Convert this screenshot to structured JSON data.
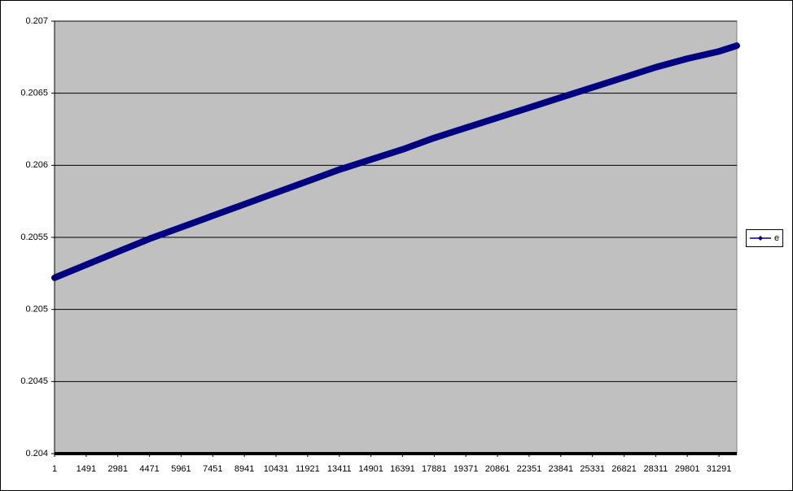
{
  "chart_data": {
    "type": "line",
    "x": [
      1,
      1491,
      2981,
      4471,
      5961,
      7451,
      8941,
      10431,
      11921,
      13411,
      14901,
      16391,
      17881,
      19371,
      20861,
      22351,
      23841,
      25331,
      26821,
      28311,
      29801,
      31291,
      32131
    ],
    "series": [
      {
        "name": "e",
        "color": "#000080",
        "values": [
          0.20522,
          0.20531,
          0.2054,
          0.20549,
          0.20557,
          0.20565,
          0.20573,
          0.20581,
          0.20589,
          0.20597,
          0.20604,
          0.20611,
          0.20619,
          0.20626,
          0.20633,
          0.2064,
          0.20647,
          0.20654,
          0.20661,
          0.20668,
          0.20674,
          0.20679,
          0.20683
        ]
      }
    ],
    "xlim": [
      1,
      32131
    ],
    "xticks": [
      1,
      1491,
      2981,
      4471,
      5961,
      7451,
      8941,
      10431,
      11921,
      13411,
      14901,
      16391,
      17881,
      19371,
      20861,
      22351,
      23841,
      25331,
      26821,
      28311,
      29801,
      31291
    ],
    "ylim": [
      0.204,
      0.207
    ],
    "yticks": [
      0.204,
      0.2045,
      0.205,
      0.2055,
      0.206,
      0.2065,
      0.207
    ],
    "grid": true,
    "legend": "right"
  }
}
